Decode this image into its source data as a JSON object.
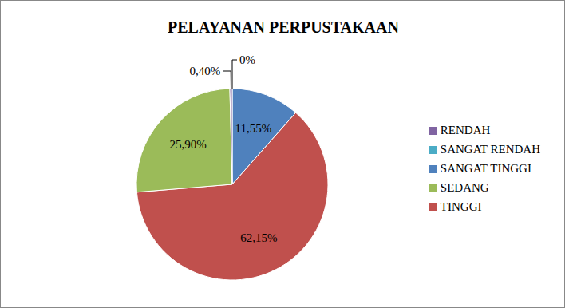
{
  "chart_data": {
    "type": "pie",
    "title": "PELAYANAN PERPUSTAKAAN",
    "categories": [
      "SANGAT TINGGI",
      "TINGGI",
      "SEDANG",
      "RENDAH",
      "SANGAT RENDAH"
    ],
    "values": [
      11.55,
      62.15,
      25.9,
      0.4,
      0
    ],
    "value_labels": [
      "11,55%",
      "62,15%",
      "25,90%",
      "0,40%",
      "0%"
    ],
    "colors": [
      "#4f81bd",
      "#c0504d",
      "#9bbb59",
      "#8064a2",
      "#4bacc6"
    ],
    "data_labels": true,
    "legend": "right"
  }
}
